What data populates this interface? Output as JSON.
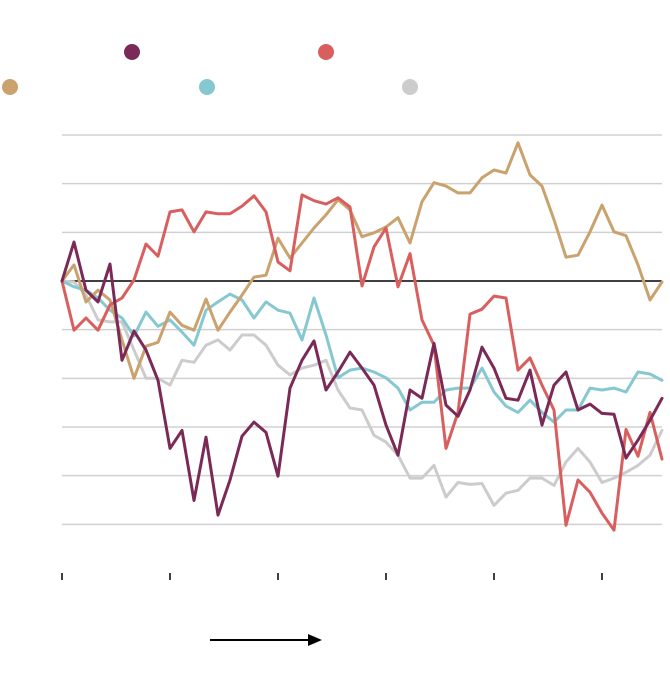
{
  "chart_data": {
    "type": "line",
    "x": [
      0,
      1,
      2,
      3,
      4,
      5,
      6,
      7,
      8,
      9,
      10,
      11,
      12,
      13,
      14,
      15,
      16,
      17,
      18,
      19,
      20,
      21,
      22,
      23,
      24,
      25,
      26,
      27,
      28,
      29,
      30,
      31,
      32,
      33,
      34,
      35,
      36,
      37,
      38,
      39,
      40,
      41,
      42,
      43,
      44,
      45,
      46,
      47,
      48,
      49,
      50
    ],
    "xlim": [
      0,
      50
    ],
    "xticks": [
      0,
      9,
      18,
      27,
      36,
      45
    ],
    "ylim": [
      -60,
      30
    ],
    "yticks": [
      -50,
      -40,
      -30,
      -20,
      -10,
      0,
      10,
      20,
      30
    ],
    "grid": true,
    "zero_line": true,
    "series": [
      {
        "color": "#cccccc",
        "values": [
          0,
          -0.2,
          -2.9,
          -8.0,
          -8.4,
          -8.4,
          -14.2,
          -20.0,
          -20.0,
          -21.4,
          -16.3,
          -16.7,
          -13.2,
          -12.1,
          -14.2,
          -11.1,
          -11.1,
          -13.2,
          -17.3,
          -19.3,
          -17.9,
          -17.3,
          -16.3,
          -22.4,
          -26.1,
          -26.5,
          -31.7,
          -33.1,
          -35.8,
          -40.5,
          -40.5,
          -37.9,
          -44.4,
          -41.4,
          -41.8,
          -41.6,
          -46.1,
          -43.6,
          -43.0,
          -40.5,
          -40.5,
          -42.0,
          -37.2,
          -34.4,
          -37.2,
          -41.4,
          -40.5,
          -39.3,
          -37.9,
          -35.8,
          -30.7
        ]
      },
      {
        "color": "#86c8d1",
        "values": [
          0,
          -1.2,
          -1.9,
          -3.5,
          -6.0,
          -7.6,
          -11.3,
          -6.4,
          -9.3,
          -8.0,
          -10.5,
          -13.2,
          -6.0,
          -4.3,
          -2.7,
          -3.9,
          -7.6,
          -4.3,
          -6.0,
          -6.6,
          -12.1,
          -3.5,
          -11.1,
          -19.9,
          -18.3,
          -17.9,
          -18.7,
          -19.9,
          -22.0,
          -26.5,
          -24.9,
          -24.9,
          -22.4,
          -22.0,
          -22.0,
          -17.9,
          -22.8,
          -25.7,
          -27.0,
          -24.5,
          -27.0,
          -29.0,
          -26.5,
          -26.5,
          -22.0,
          -22.4,
          -22.0,
          -22.8,
          -18.7,
          -19.1,
          -20.4
        ]
      },
      {
        "color": "#c9a26d",
        "values": [
          0,
          3.3,
          -4.3,
          -1.9,
          -3.9,
          -12.1,
          -20.0,
          -13.4,
          -12.6,
          -6.4,
          -9.1,
          -10.1,
          -3.7,
          -10.1,
          -6.4,
          -2.9,
          0.8,
          1.2,
          8.8,
          4.7,
          7.8,
          10.9,
          13.6,
          16.7,
          14.6,
          9.1,
          9.9,
          11.1,
          13.0,
          7.8,
          16.3,
          20.2,
          19.5,
          18.1,
          18.1,
          21.2,
          22.8,
          22.2,
          28.4,
          21.8,
          19.5,
          12.6,
          4.9,
          5.3,
          10.1,
          15.6,
          10.1,
          9.3,
          3.3,
          -3.9,
          -0.2
        ]
      },
      {
        "color": "#d95f5f",
        "values": [
          0,
          -10.1,
          -7.6,
          -10.1,
          -4.9,
          -3.5,
          0.2,
          7.6,
          5.1,
          14.2,
          14.6,
          10.1,
          14.2,
          13.8,
          13.8,
          15.4,
          17.5,
          14.2,
          3.9,
          2.1,
          17.7,
          16.5,
          15.8,
          17.1,
          15.2,
          -1.0,
          7.0,
          10.9,
          -1.2,
          5.6,
          -8.0,
          -13.2,
          -34.4,
          -27.0,
          -6.8,
          -5.8,
          -3.1,
          -3.5,
          -18.3,
          -15.8,
          -21.4,
          -26.5,
          -50.2,
          -40.9,
          -43.4,
          -47.7,
          -51.2,
          -30.5,
          -36.0,
          -27.0,
          -36.6
        ]
      },
      {
        "color": "#7b2a57",
        "values": [
          0,
          8.0,
          -1.9,
          -4.3,
          3.5,
          -16.3,
          -10.3,
          -14.2,
          -20.4,
          -34.4,
          -30.7,
          -45.1,
          -32.1,
          -48.1,
          -40.9,
          -31.9,
          -29.0,
          -31.1,
          -40.1,
          -22.0,
          -16.3,
          -12.3,
          -22.4,
          -18.7,
          -14.6,
          -17.9,
          -21.4,
          -29.6,
          -35.8,
          -22.4,
          -24.1,
          -12.8,
          -25.5,
          -27.8,
          -22.4,
          -13.6,
          -17.9,
          -24.1,
          -24.5,
          -18.3,
          -29.6,
          -21.4,
          -18.7,
          -26.5,
          -25.3,
          -27.2,
          -27.4,
          -36.4,
          -32.7,
          -28.6,
          -24.1
        ]
      }
    ]
  }
}
